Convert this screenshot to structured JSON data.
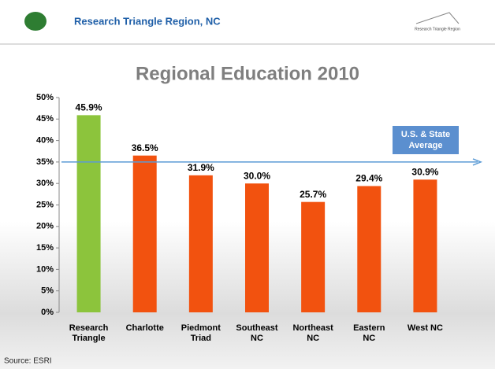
{
  "header": {
    "title": "Research Triangle Region, NC",
    "logo_text": "Research Triangle Region"
  },
  "chart_data": {
    "type": "bar",
    "title": "Regional Education 2010",
    "categories": [
      "Research\nTriangle",
      "Charlotte",
      "Piedmont\nTriad",
      "Southeast\nNC",
      "Northeast\nNC",
      "Eastern\nNC",
      "West NC"
    ],
    "values": [
      45.9,
      36.5,
      31.9,
      30.0,
      25.7,
      29.4,
      30.9
    ],
    "value_labels": [
      "45.9%",
      "36.5%",
      "31.9%",
      "30.0%",
      "25.7%",
      "29.4%",
      "30.9%"
    ],
    "colors": [
      "#8cc43c",
      "#f2520f",
      "#f2520f",
      "#f2520f",
      "#f2520f",
      "#f2520f",
      "#f2520f"
    ],
    "ylim": [
      0,
      50
    ],
    "yticks": [
      {
        "value": 0,
        "label": "0%"
      },
      {
        "value": 5,
        "label": "5%"
      },
      {
        "value": 10,
        "label": "10%"
      },
      {
        "value": 15,
        "label": "15%"
      },
      {
        "value": 20,
        "label": "20%"
      },
      {
        "value": 25,
        "label": "25%"
      },
      {
        "value": 30,
        "label": "30%"
      },
      {
        "value": 35,
        "label": "35%"
      },
      {
        "value": 40,
        "label": "40%"
      },
      {
        "value": 45,
        "label": "45%"
      },
      {
        "value": 50,
        "label": "50%"
      }
    ],
    "reference_line": {
      "value": 35,
      "label": "U.S. & State Average",
      "color": "#5b9bd5"
    },
    "source": "Source: ESRI"
  }
}
